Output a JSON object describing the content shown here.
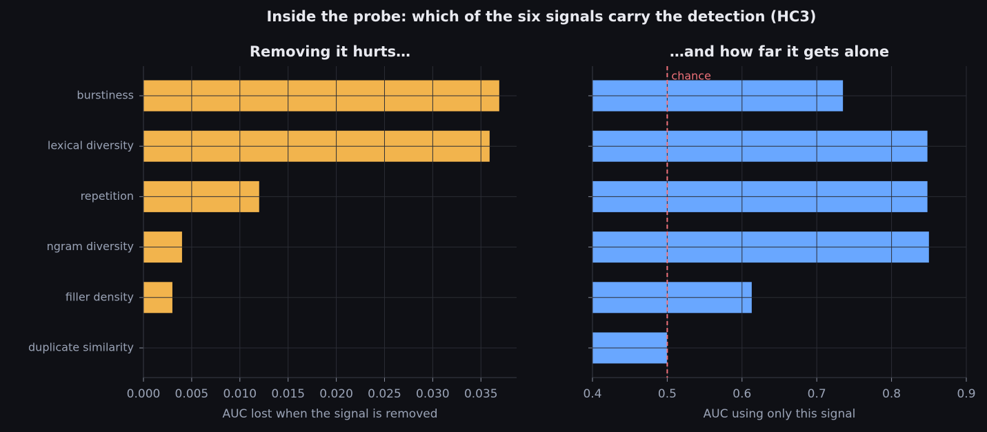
{
  "title": "Inside the probe: which of the six signals carry the detection (HC3)",
  "chart_data": [
    {
      "type": "bar",
      "orientation": "horizontal",
      "title": "Removing it hurts…",
      "xlabel": "AUC lost when the signal is removed",
      "categories": [
        "burstiness",
        "lexical diversity",
        "repetition",
        "ngram diversity",
        "filler density",
        "duplicate similarity"
      ],
      "values": [
        0.0369,
        0.0359,
        0.012,
        0.004,
        0.003,
        0
      ],
      "color": "#f2b44d",
      "xlim": [
        0,
        0.0387
      ],
      "xticks": [
        {
          "value": 0,
          "label": "0.000"
        },
        {
          "value": 0.005,
          "label": "0.005"
        },
        {
          "value": 0.01,
          "label": "0.010"
        },
        {
          "value": 0.015,
          "label": "0.015"
        },
        {
          "value": 0.02,
          "label": "0.020"
        },
        {
          "value": 0.025,
          "label": "0.025"
        },
        {
          "value": 0.03,
          "label": "0.030"
        },
        {
          "value": 0.035,
          "label": "0.035"
        }
      ],
      "grid": true
    },
    {
      "type": "bar",
      "orientation": "horizontal",
      "title": "…and how far it gets alone",
      "xlabel": "AUC using only this signal",
      "categories": [
        "burstiness",
        "lexical diversity",
        "repetition",
        "ngram diversity",
        "filler density",
        "duplicate similarity"
      ],
      "values": [
        0.735,
        0.848,
        0.848,
        0.85,
        0.613,
        0.5
      ],
      "color": "#69a7ff",
      "xlim": [
        0.4,
        0.9
      ],
      "xticks": [
        0.4,
        0.5,
        0.6,
        0.7,
        0.8,
        0.9
      ],
      "grid": true,
      "reference_line": {
        "value": 0.5,
        "label": "chance",
        "color": "#f0727a"
      }
    }
  ]
}
